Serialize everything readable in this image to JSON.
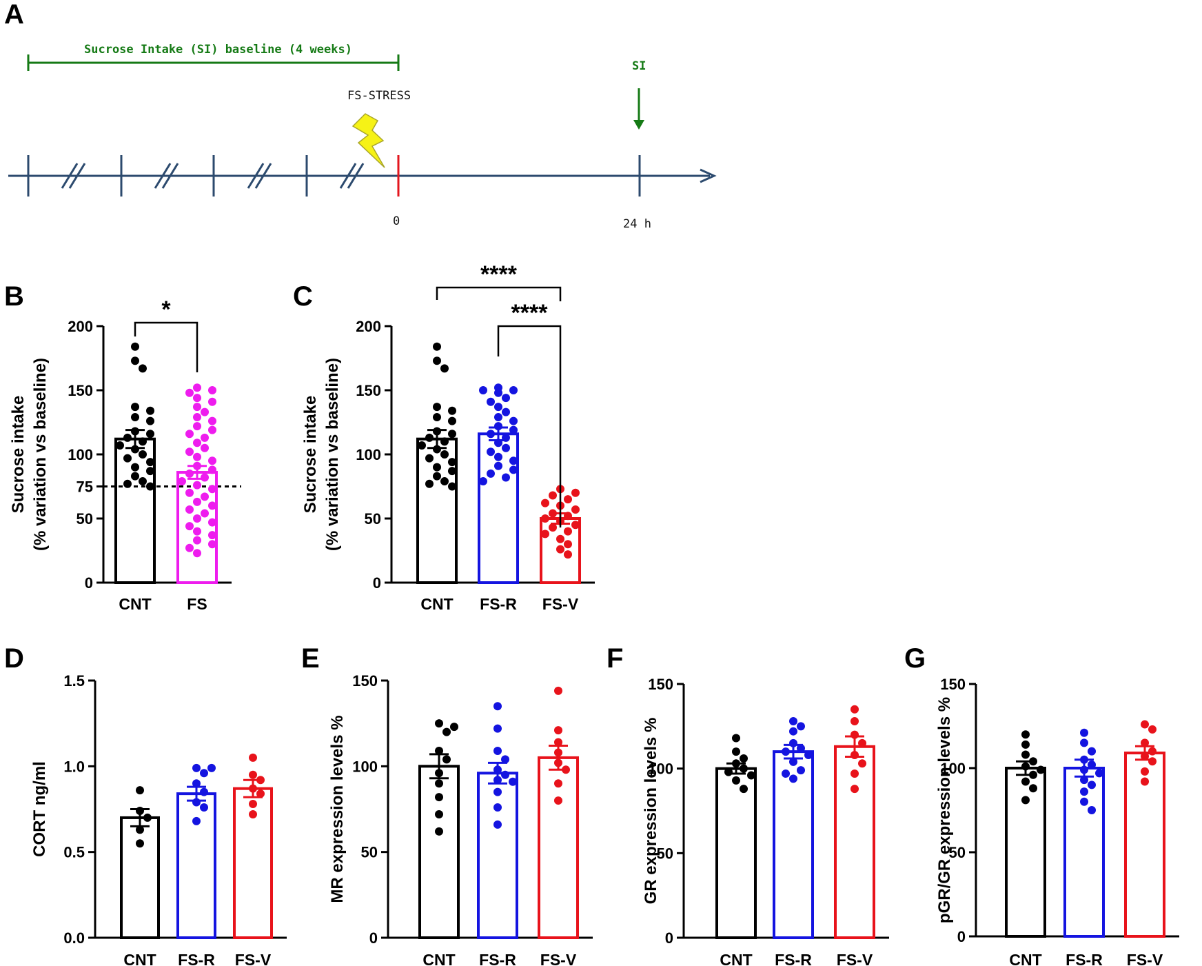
{
  "timeline": {
    "panel_label": "A",
    "baseline_label": "Sucrose Intake (SI) baseline (4 weeks)",
    "stress_label": "FS-STRESS",
    "si_label": "SI",
    "tick_zero": "0",
    "tick_24h": "24 h",
    "colors": {
      "line": "#2c4a6e",
      "green": "#157a15",
      "red": "#e3161e",
      "bolt": "#f6f216"
    }
  },
  "colors": {
    "CNT": "#000000",
    "FS": "#ee1cee",
    "FS-R": "#1414e0",
    "FS-V": "#e8131b"
  },
  "chart_data": [
    {
      "id": "B",
      "panel_label": "B",
      "type": "bar",
      "ylabel": [
        "Sucrose intake",
        "(% variation vs baseline)"
      ],
      "ylim": [
        0,
        200
      ],
      "yticks": [
        0,
        50,
        75,
        100,
        150,
        200
      ],
      "ytick_labels": [
        "0",
        "50",
        "75",
        "100",
        "150",
        "200"
      ],
      "reference_line": 75,
      "categories": [
        "CNT",
        "FS"
      ],
      "series": [
        {
          "name": "CNT",
          "mean": 112,
          "sem": 7,
          "points": [
            184,
            173,
            167,
            137,
            134,
            129,
            126,
            118,
            116,
            113,
            110,
            107,
            104,
            100,
            97,
            94,
            90,
            87,
            83,
            79,
            77,
            75
          ]
        },
        {
          "name": "FS",
          "mean": 86,
          "sem": 5,
          "points": [
            152,
            150,
            148,
            144,
            141,
            137,
            133,
            129,
            126,
            122,
            119,
            116,
            113,
            109,
            105,
            102,
            98,
            95,
            91,
            88,
            85,
            82,
            79,
            76,
            73,
            70,
            67,
            63,
            60,
            57,
            54,
            50,
            47,
            44,
            40,
            37,
            33,
            30,
            27,
            23
          ]
        }
      ],
      "significance": [
        {
          "pair": [
            "CNT",
            "FS"
          ],
          "label": "*"
        }
      ]
    },
    {
      "id": "C",
      "panel_label": "C",
      "type": "bar",
      "ylabel": [
        "Sucrose intake",
        "(% variation vs baseline)"
      ],
      "ylim": [
        0,
        200
      ],
      "yticks": [
        0,
        50,
        100,
        150,
        200
      ],
      "ytick_labels": [
        "0",
        "50",
        "100",
        "150",
        "200"
      ],
      "categories": [
        "CNT",
        "FS-R",
        "FS-V"
      ],
      "series": [
        {
          "name": "CNT",
          "mean": 112,
          "sem": 7,
          "points": [
            184,
            173,
            167,
            137,
            134,
            129,
            126,
            118,
            116,
            113,
            110,
            107,
            104,
            100,
            97,
            94,
            90,
            87,
            83,
            79,
            77,
            75
          ]
        },
        {
          "name": "FS-R",
          "mean": 116,
          "sem": 5,
          "points": [
            152,
            150,
            150,
            148,
            144,
            141,
            137,
            133,
            129,
            126,
            122,
            119,
            116,
            113,
            109,
            105,
            102,
            98,
            95,
            91,
            88,
            85,
            82,
            79
          ]
        },
        {
          "name": "FS-V",
          "mean": 50,
          "sem": 4,
          "points": [
            73,
            70,
            68,
            65,
            62,
            60,
            57,
            54,
            52,
            50,
            48,
            45,
            43,
            40,
            38,
            34,
            30,
            26,
            22
          ]
        }
      ],
      "significance": [
        {
          "pair": [
            "CNT",
            "FS-V"
          ],
          "label": "****"
        },
        {
          "pair": [
            "FS-R",
            "FS-V"
          ],
          "label": "****"
        }
      ]
    },
    {
      "id": "D",
      "panel_label": "D",
      "type": "bar",
      "ylabel": [
        "CORT ng/ml"
      ],
      "ylim": [
        0,
        1.5
      ],
      "yticks": [
        0,
        0.5,
        1.0,
        1.5
      ],
      "ytick_labels": [
        "0.0",
        "0.5",
        "1.0",
        "1.5"
      ],
      "categories": [
        "CNT",
        "FS-R",
        "FS-V"
      ],
      "series": [
        {
          "name": "CNT",
          "mean": 0.7,
          "sem": 0.05,
          "points": [
            0.86,
            0.74,
            0.7,
            0.63,
            0.55
          ]
        },
        {
          "name": "FS-R",
          "mean": 0.84,
          "sem": 0.04,
          "points": [
            0.99,
            0.99,
            0.96,
            0.9,
            0.85,
            0.79,
            0.76,
            0.68
          ]
        },
        {
          "name": "FS-V",
          "mean": 0.87,
          "sem": 0.05,
          "points": [
            1.05,
            0.95,
            0.92,
            0.87,
            0.84,
            0.78,
            0.72
          ]
        }
      ]
    },
    {
      "id": "E",
      "panel_label": "E",
      "type": "bar",
      "ylabel": [
        "MR expression levels %"
      ],
      "ylim": [
        0,
        150
      ],
      "yticks": [
        0,
        50,
        100,
        150
      ],
      "ytick_labels": [
        "0",
        "50",
        "100",
        "150"
      ],
      "categories": [
        "CNT",
        "FS-R",
        "FS-V"
      ],
      "series": [
        {
          "name": "CNT",
          "mean": 100,
          "sem": 7,
          "points": [
            125,
            123,
            120,
            109,
            104,
            96,
            90,
            82,
            72,
            62
          ]
        },
        {
          "name": "FS-R",
          "mean": 96,
          "sem": 6,
          "points": [
            135,
            122,
            109,
            104,
            98,
            95,
            92,
            91,
            85,
            76,
            66
          ]
        },
        {
          "name": "FS-V",
          "mean": 105,
          "sem": 7,
          "points": [
            144,
            121,
            114,
            108,
            102,
            98,
            90,
            80
          ]
        }
      ]
    },
    {
      "id": "F",
      "panel_label": "F",
      "type": "bar",
      "ylabel": [
        "GR expression levels %"
      ],
      "ylim": [
        0,
        150
      ],
      "yticks": [
        0,
        50,
        100,
        150
      ],
      "ytick_labels": [
        "0",
        "50",
        "100",
        "150"
      ],
      "categories": [
        "CNT",
        "FS-R",
        "FS-V"
      ],
      "series": [
        {
          "name": "CNT",
          "mean": 100,
          "sem": 3,
          "points": [
            118,
            110,
            106,
            103,
            100,
            98,
            96,
            93,
            88
          ]
        },
        {
          "name": "FS-R",
          "mean": 110,
          "sem": 4,
          "points": [
            128,
            125,
            122,
            115,
            112,
            110,
            108,
            104,
            99,
            97,
            94
          ]
        },
        {
          "name": "FS-V",
          "mean": 113,
          "sem": 6,
          "points": [
            135,
            128,
            120,
            115,
            108,
            103,
            97,
            88
          ]
        }
      ]
    },
    {
      "id": "G",
      "panel_label": "G",
      "type": "bar",
      "ylabel": [
        "pGR/GR expression levels %"
      ],
      "ylim": [
        0,
        150
      ],
      "yticks": [
        0,
        50,
        100,
        150
      ],
      "ytick_labels": [
        "0",
        "50",
        "100",
        "150"
      ],
      "categories": [
        "CNT",
        "FS-R",
        "FS-V"
      ],
      "series": [
        {
          "name": "CNT",
          "mean": 100,
          "sem": 4,
          "points": [
            120,
            114,
            108,
            104,
            101,
            99,
            96,
            92,
            88,
            81
          ]
        },
        {
          "name": "FS-R",
          "mean": 100,
          "sem": 5,
          "points": [
            121,
            115,
            110,
            105,
            102,
            99,
            97,
            93,
            90,
            86,
            80,
            75
          ]
        },
        {
          "name": "FS-V",
          "mean": 109,
          "sem": 4,
          "points": [
            126,
            123,
            115,
            110,
            107,
            104,
            98,
            92
          ]
        }
      ]
    }
  ]
}
